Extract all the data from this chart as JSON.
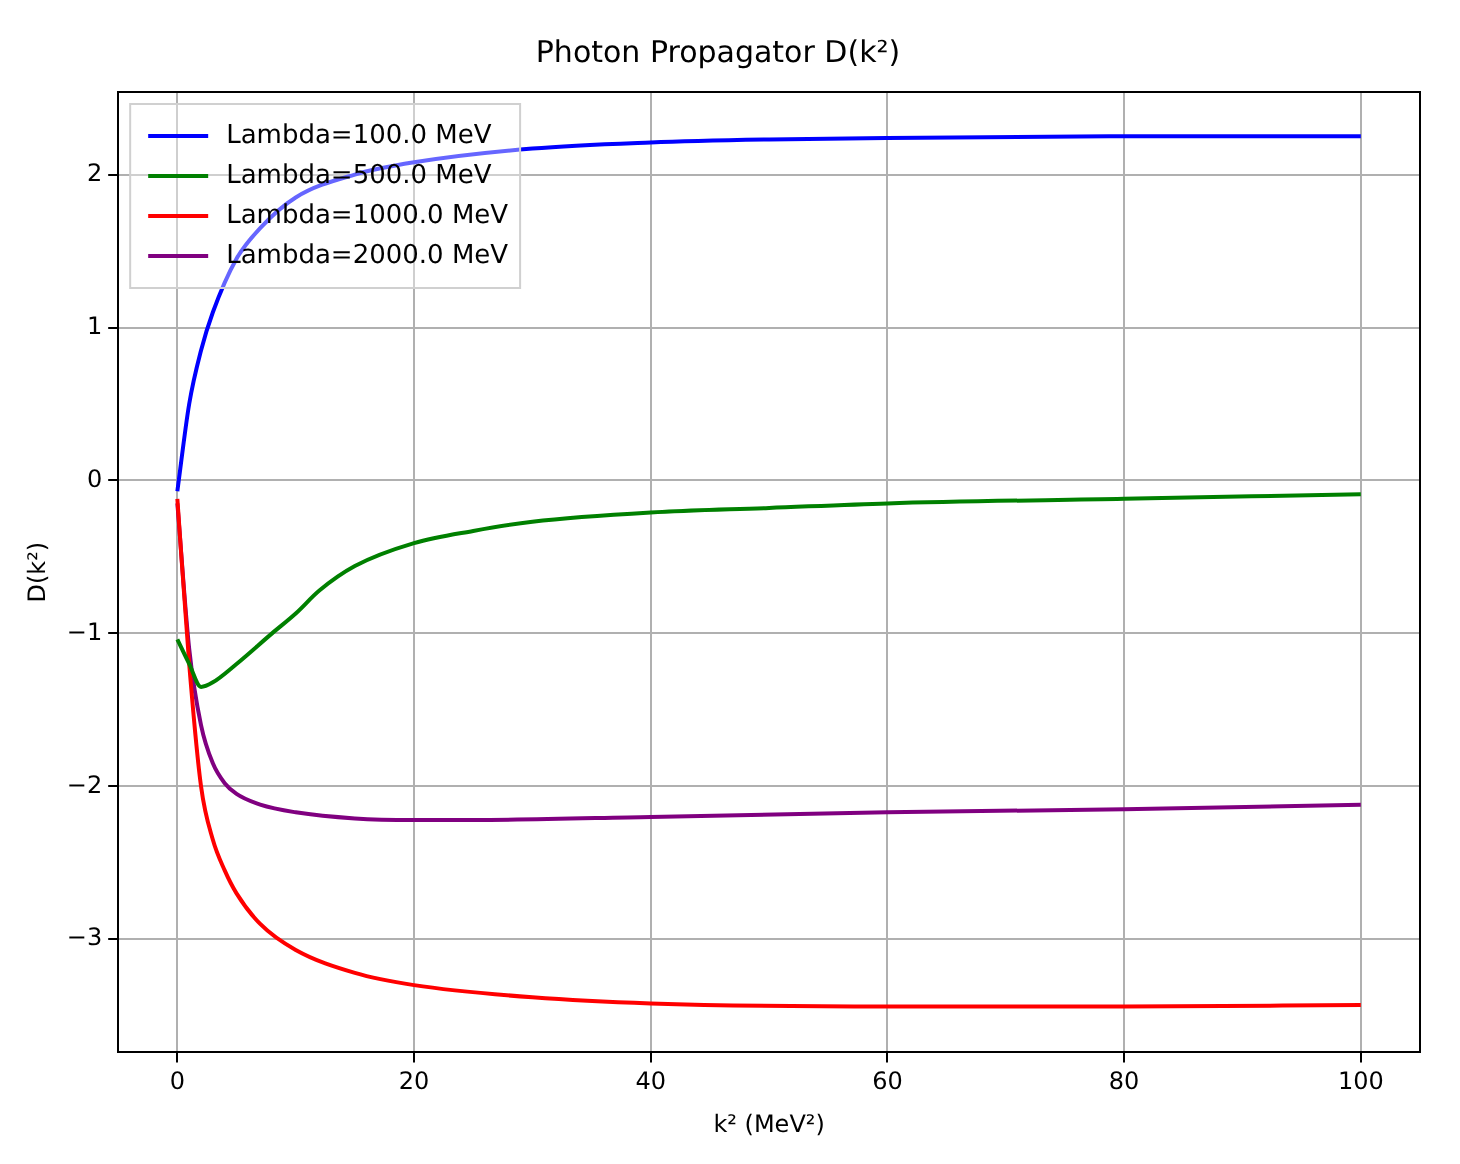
{
  "chart_data": {
    "type": "line",
    "title": "Photon Propagator D(k²)",
    "xlabel": "k² (MeV²)",
    "ylabel": "D(k²)",
    "xlim": [
      -5,
      105
    ],
    "xticks": [
      0,
      20,
      40,
      60,
      80,
      100
    ],
    "ylim": [
      -3.74,
      2.54
    ],
    "yticks": [
      -3,
      -2,
      -1,
      0,
      1,
      2
    ],
    "grid": true,
    "legend": "top left",
    "marker": "none",
    "line_style": "solid",
    "series": [
      {
        "name": "Lambda=100.0 MeV",
        "color": "#0000ff",
        "x": [
          0,
          1,
          2,
          3,
          5,
          7,
          10,
          15,
          20,
          30,
          40,
          50,
          60,
          80,
          100
        ],
        "values": [
          -0.07,
          0.5,
          0.85,
          1.1,
          1.45,
          1.65,
          1.85,
          2.0,
          2.08,
          2.17,
          2.21,
          2.23,
          2.24,
          2.25,
          2.25
        ]
      },
      {
        "name": "Lambda=500.0 MeV",
        "color": "#008000",
        "x": [
          0,
          1,
          2,
          3,
          5,
          8,
          10,
          12,
          15,
          20,
          25,
          30,
          40,
          50,
          60,
          80,
          100
        ],
        "values": [
          -1.04,
          -1.2,
          -1.35,
          -1.32,
          -1.2,
          -1.0,
          -0.87,
          -0.72,
          -0.56,
          -0.41,
          -0.33,
          -0.27,
          -0.21,
          -0.18,
          -0.15,
          -0.12,
          -0.09
        ]
      },
      {
        "name": "Lambda=1000.0 MeV",
        "color": "#ff0000",
        "x": [
          0,
          1,
          2,
          3,
          4,
          5,
          7,
          10,
          15,
          20,
          30,
          40,
          60,
          80,
          100
        ],
        "values": [
          -0.12,
          -1.2,
          -2.0,
          -2.35,
          -2.55,
          -2.7,
          -2.9,
          -3.07,
          -3.22,
          -3.3,
          -3.38,
          -3.42,
          -3.44,
          -3.44,
          -3.43
        ]
      },
      {
        "name": "Lambda=2000.0 MeV",
        "color": "#800080",
        "x": [
          0,
          1,
          2,
          3,
          4,
          5,
          7,
          10,
          15,
          20,
          25,
          40,
          60,
          80,
          100
        ],
        "values": [
          -0.15,
          -1.1,
          -1.6,
          -1.85,
          -1.98,
          -2.05,
          -2.12,
          -2.17,
          -2.21,
          -2.22,
          -2.22,
          -2.2,
          -2.17,
          -2.15,
          -2.12
        ]
      }
    ]
  }
}
